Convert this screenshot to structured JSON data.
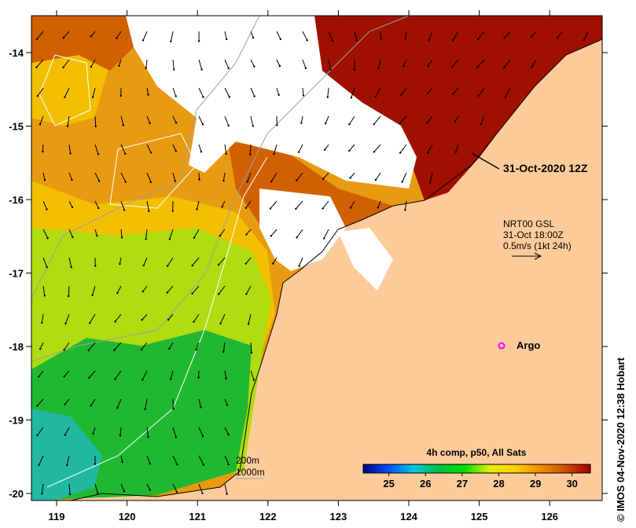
{
  "map": {
    "lon_ticks": [
      "119",
      "120",
      "121",
      "122",
      "123",
      "124",
      "125",
      "126"
    ],
    "lat_ticks": [
      "-14",
      "-15",
      "-16",
      "-17",
      "-18",
      "-19",
      "-20"
    ],
    "track_label": "31-Oct-2020 12Z",
    "current_legend": {
      "line1": "NRT00 GSL",
      "line2": "31-Oct 18:00Z",
      "line3": "0.5m/s (1kt 24h)"
    },
    "argo_label": "Argo",
    "depth_legend": {
      "contour1": "200m",
      "contour2": "1000m"
    },
    "colorbar": {
      "title": "4h comp, p50, All Sats",
      "ticks": [
        "25",
        "26",
        "27",
        "28",
        "29",
        "30"
      ],
      "range": [
        24.3,
        30.5
      ],
      "colors": [
        "#00007f",
        "#0050ff",
        "#00c8e0",
        "#00c040",
        "#00e000",
        "#e0f000",
        "#ffd000",
        "#f09000",
        "#d05000",
        "#a00000"
      ]
    },
    "credit": "© IMOS 04-Nov-2020 12:38 Hobart",
    "land_color": "#fdcb9a"
  }
}
